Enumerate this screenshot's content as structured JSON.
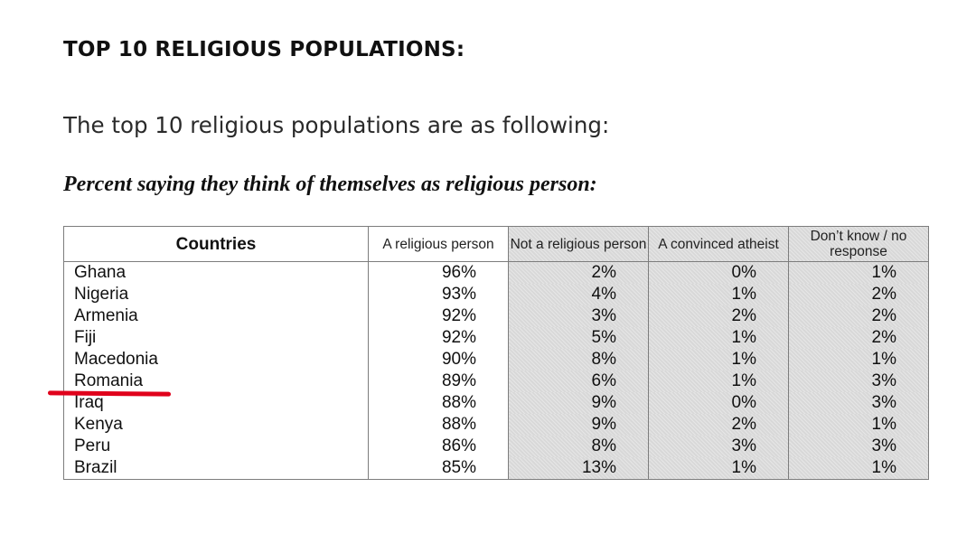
{
  "heading": "TOP 10 RELIGIOUS POPULATIONS:",
  "intro": "The top 10 religious populations are as following:",
  "caption": "Percent saying they think of themselves as religious person:",
  "table": {
    "headers": [
      "Countries",
      "A religious person",
      "Not a religious person",
      "A convinced atheist",
      "Don’t know / no response"
    ],
    "rows": [
      [
        "Ghana",
        "96%",
        "2%",
        "0%",
        "1%"
      ],
      [
        "Nigeria",
        "93%",
        "4%",
        "1%",
        "2%"
      ],
      [
        "Armenia",
        "92%",
        "3%",
        "2%",
        "2%"
      ],
      [
        "Fiji",
        "92%",
        "5%",
        "1%",
        "2%"
      ],
      [
        "Macedonia",
        "90%",
        "8%",
        "1%",
        "1%"
      ],
      [
        "Romania",
        "89%",
        "6%",
        "1%",
        "3%"
      ],
      [
        "Iraq",
        "88%",
        "9%",
        "0%",
        "3%"
      ],
      [
        "Kenya",
        "88%",
        "9%",
        "2%",
        "1%"
      ],
      [
        "Peru",
        "86%",
        "8%",
        "3%",
        "3%"
      ],
      [
        "Brazil",
        "85%",
        "13%",
        "1%",
        "1%"
      ]
    ]
  },
  "highlight": {
    "row": "Romania",
    "color": "#e0001b"
  },
  "colors": {
    "shade": "#d8d8d8",
    "border": "#7d7d7d"
  }
}
